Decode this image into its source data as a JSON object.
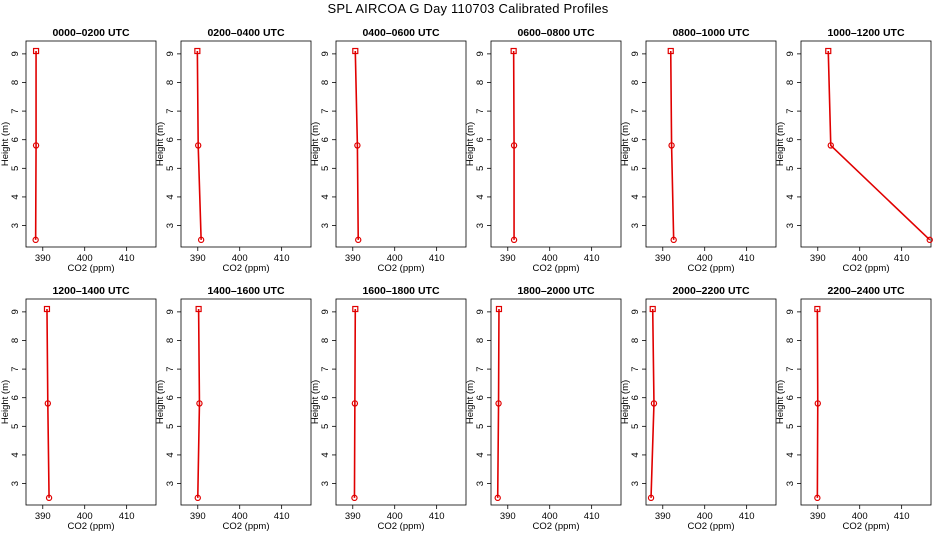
{
  "figure": {
    "title": "SPL AIRCOA G  Day 110703  Calibrated Profiles"
  },
  "colors": {
    "series": "#e00000",
    "axis": "#000000"
  },
  "chart_data": [
    {
      "type": "line",
      "title": "0000–0200 UTC",
      "xlabel": "CO2 (ppm)",
      "ylabel": "Height (m)",
      "xlim": [
        386,
        417
      ],
      "ylim": [
        2.25,
        9.45
      ],
      "xticks": [
        390,
        400,
        410
      ],
      "yticks": [
        3,
        4,
        5,
        6,
        7,
        8,
        9
      ],
      "x": [
        388.3,
        388.4,
        388.4
      ],
      "y": [
        2.5,
        5.8,
        9.1
      ]
    },
    {
      "type": "line",
      "title": "0200–0400 UTC",
      "xlabel": "CO2 (ppm)",
      "ylabel": "Height (m)",
      "xlim": [
        386,
        417
      ],
      "ylim": [
        2.25,
        9.45
      ],
      "xticks": [
        390,
        400,
        410
      ],
      "yticks": [
        3,
        4,
        5,
        6,
        7,
        8,
        9
      ],
      "x": [
        390.8,
        390.1,
        389.9
      ],
      "y": [
        2.5,
        5.8,
        9.1
      ]
    },
    {
      "type": "line",
      "title": "0400–0600 UTC",
      "xlabel": "CO2 (ppm)",
      "ylabel": "Height (m)",
      "xlim": [
        386,
        417
      ],
      "ylim": [
        2.25,
        9.45
      ],
      "xticks": [
        390,
        400,
        410
      ],
      "yticks": [
        3,
        4,
        5,
        6,
        7,
        8,
        9
      ],
      "x": [
        391.3,
        391.1,
        390.6
      ],
      "y": [
        2.5,
        5.8,
        9.1
      ]
    },
    {
      "type": "line",
      "title": "0600–0800 UTC",
      "xlabel": "CO2 (ppm)",
      "ylabel": "Height (m)",
      "xlim": [
        386,
        417
      ],
      "ylim": [
        2.25,
        9.45
      ],
      "xticks": [
        390,
        400,
        410
      ],
      "yticks": [
        3,
        4,
        5,
        6,
        7,
        8,
        9
      ],
      "x": [
        391.5,
        391.5,
        391.4
      ],
      "y": [
        2.5,
        5.8,
        9.1
      ]
    },
    {
      "type": "line",
      "title": "0800–1000 UTC",
      "xlabel": "CO2 (ppm)",
      "ylabel": "Height (m)",
      "xlim": [
        386,
        417
      ],
      "ylim": [
        2.25,
        9.45
      ],
      "xticks": [
        390,
        400,
        410
      ],
      "yticks": [
        3,
        4,
        5,
        6,
        7,
        8,
        9
      ],
      "x": [
        392.6,
        392.1,
        391.9
      ],
      "y": [
        2.5,
        5.8,
        9.1
      ]
    },
    {
      "type": "line",
      "title": "1000–1200 UTC",
      "xlabel": "CO2 (ppm)",
      "ylabel": "Height (m)",
      "xlim": [
        386,
        417
      ],
      "ylim": [
        2.25,
        9.45
      ],
      "xticks": [
        390,
        400,
        410
      ],
      "yticks": [
        3,
        4,
        5,
        6,
        7,
        8,
        9
      ],
      "x": [
        416.7,
        393.1,
        392.5
      ],
      "y": [
        2.5,
        5.8,
        9.1
      ]
    },
    {
      "type": "line",
      "title": "1200–1400 UTC",
      "xlabel": "CO2 (ppm)",
      "ylabel": "Height (m)",
      "xlim": [
        386,
        417
      ],
      "ylim": [
        2.25,
        9.45
      ],
      "xticks": [
        390,
        400,
        410
      ],
      "yticks": [
        3,
        4,
        5,
        6,
        7,
        8,
        9
      ],
      "x": [
        391.5,
        391.2,
        391.0
      ],
      "y": [
        2.5,
        5.8,
        9.1
      ]
    },
    {
      "type": "line",
      "title": "1400–1600 UTC",
      "xlabel": "CO2 (ppm)",
      "ylabel": "Height (m)",
      "xlim": [
        386,
        417
      ],
      "ylim": [
        2.25,
        9.45
      ],
      "xticks": [
        390,
        400,
        410
      ],
      "yticks": [
        3,
        4,
        5,
        6,
        7,
        8,
        9
      ],
      "x": [
        390.0,
        390.4,
        390.2
      ],
      "y": [
        2.5,
        5.8,
        9.1
      ]
    },
    {
      "type": "line",
      "title": "1600–1800 UTC",
      "xlabel": "CO2 (ppm)",
      "ylabel": "Height (m)",
      "xlim": [
        386,
        417
      ],
      "ylim": [
        2.25,
        9.45
      ],
      "xticks": [
        390,
        400,
        410
      ],
      "yticks": [
        3,
        4,
        5,
        6,
        7,
        8,
        9
      ],
      "x": [
        390.4,
        390.5,
        390.6
      ],
      "y": [
        2.5,
        5.8,
        9.1
      ]
    },
    {
      "type": "line",
      "title": "1800–2000 UTC",
      "xlabel": "CO2 (ppm)",
      "ylabel": "Height (m)",
      "xlim": [
        386,
        417
      ],
      "ylim": [
        2.25,
        9.45
      ],
      "xticks": [
        390,
        400,
        410
      ],
      "yticks": [
        3,
        4,
        5,
        6,
        7,
        8,
        9
      ],
      "x": [
        387.6,
        387.8,
        387.9
      ],
      "y": [
        2.5,
        5.8,
        9.1
      ]
    },
    {
      "type": "line",
      "title": "2000–2200 UTC",
      "xlabel": "CO2 (ppm)",
      "ylabel": "Height (m)",
      "xlim": [
        386,
        417
      ],
      "ylim": [
        2.25,
        9.45
      ],
      "xticks": [
        390,
        400,
        410
      ],
      "yticks": [
        3,
        4,
        5,
        6,
        7,
        8,
        9
      ],
      "x": [
        387.2,
        387.9,
        387.6
      ],
      "y": [
        2.5,
        5.8,
        9.1
      ]
    },
    {
      "type": "line",
      "title": "2200–2400 UTC",
      "xlabel": "CO2 (ppm)",
      "ylabel": "Height (m)",
      "xlim": [
        386,
        417
      ],
      "ylim": [
        2.25,
        9.45
      ],
      "xticks": [
        390,
        400,
        410
      ],
      "yticks": [
        3,
        4,
        5,
        6,
        7,
        8,
        9
      ],
      "x": [
        389.9,
        390.0,
        389.9
      ],
      "y": [
        2.5,
        5.8,
        9.1
      ]
    }
  ]
}
